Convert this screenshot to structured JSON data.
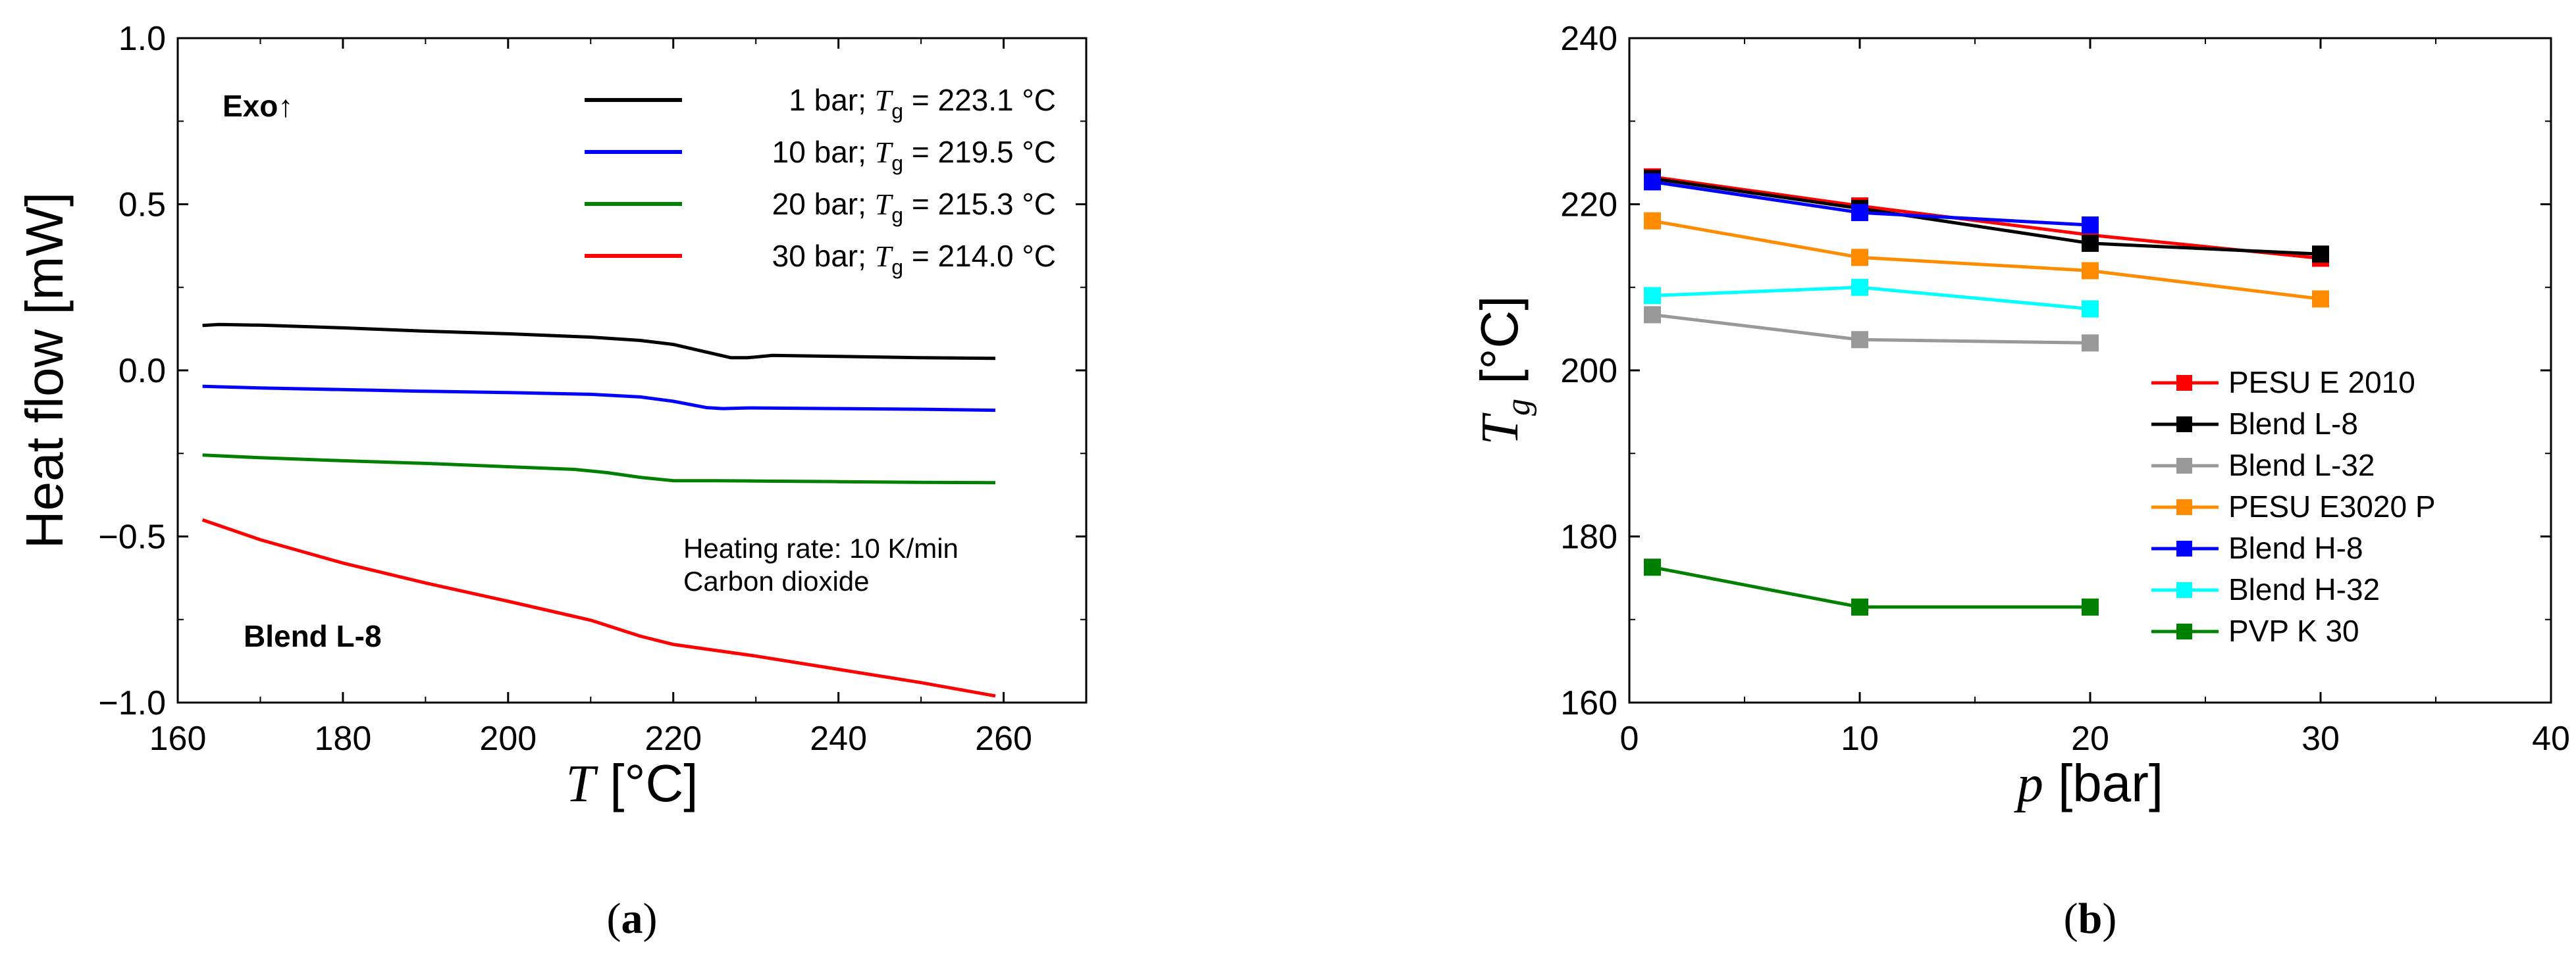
{
  "chart_data": [
    {
      "type": "line",
      "panel_label": "(a)",
      "xlabel": {
        "symbol": "T",
        "unit": "[°C]"
      },
      "ylabel": "Heat flow [mW]",
      "xlim": [
        160,
        270
      ],
      "ylim": [
        -1.0,
        1.0
      ],
      "x_ticks": [
        160,
        180,
        200,
        220,
        240,
        260
      ],
      "y_ticks": [
        -1.0,
        -0.5,
        0.0,
        0.5,
        1.0
      ],
      "x_tick_labels": [
        "160",
        "180",
        "200",
        "220",
        "240",
        "260"
      ],
      "y_tick_labels": [
        "−1.0",
        "−0.5",
        "0.0",
        "0.5",
        "1.0"
      ],
      "annotations": {
        "exo": "Exo↑",
        "heating_rate": "Heating rate: 10 K/min",
        "gas": "Carbon dioxide",
        "sample": "Blend L-8"
      },
      "series": [
        {
          "name": "1 bar",
          "pressure": "1 bar",
          "tg_value": "223.1 °C",
          "color": "#000000",
          "points": [
            [
              163,
              0.135
            ],
            [
              165,
              0.138
            ],
            [
              170,
              0.136
            ],
            [
              180,
              0.128
            ],
            [
              190,
              0.118
            ],
            [
              200,
              0.11
            ],
            [
              210,
              0.1
            ],
            [
              216,
              0.09
            ],
            [
              220,
              0.078
            ],
            [
              224,
              0.055
            ],
            [
              227,
              0.038
            ],
            [
              229,
              0.038
            ],
            [
              232,
              0.045
            ],
            [
              240,
              0.042
            ],
            [
              250,
              0.038
            ],
            [
              259,
              0.036
            ]
          ]
        },
        {
          "name": "10 bar",
          "pressure": "10 bar",
          "tg_value": "219.5 °C",
          "color": "#0000ff",
          "points": [
            [
              163,
              -0.048
            ],
            [
              170,
              -0.053
            ],
            [
              180,
              -0.058
            ],
            [
              190,
              -0.063
            ],
            [
              200,
              -0.067
            ],
            [
              210,
              -0.072
            ],
            [
              216,
              -0.08
            ],
            [
              220,
              -0.093
            ],
            [
              224,
              -0.112
            ],
            [
              226,
              -0.115
            ],
            [
              229,
              -0.113
            ],
            [
              240,
              -0.115
            ],
            [
              250,
              -0.117
            ],
            [
              259,
              -0.12
            ]
          ]
        },
        {
          "name": "20 bar",
          "pressure": "20 bar",
          "tg_value": "215.3 °C",
          "color": "#008000",
          "points": [
            [
              163,
              -0.255
            ],
            [
              170,
              -0.263
            ],
            [
              180,
              -0.272
            ],
            [
              190,
              -0.28
            ],
            [
              200,
              -0.29
            ],
            [
              208,
              -0.298
            ],
            [
              212,
              -0.308
            ],
            [
              216,
              -0.322
            ],
            [
              220,
              -0.332
            ],
            [
              225,
              -0.332
            ],
            [
              230,
              -0.333
            ],
            [
              240,
              -0.335
            ],
            [
              250,
              -0.337
            ],
            [
              259,
              -0.338
            ]
          ]
        },
        {
          "name": "30 bar",
          "pressure": "30 bar",
          "tg_value": "214.0 °C",
          "color": "#ff0000",
          "points": [
            [
              163,
              -0.45
            ],
            [
              170,
              -0.51
            ],
            [
              180,
              -0.58
            ],
            [
              190,
              -0.64
            ],
            [
              200,
              -0.695
            ],
            [
              210,
              -0.752
            ],
            [
              216,
              -0.8
            ],
            [
              220,
              -0.825
            ],
            [
              230,
              -0.86
            ],
            [
              240,
              -0.9
            ],
            [
              250,
              -0.94
            ],
            [
              259,
              -0.98
            ]
          ]
        }
      ]
    },
    {
      "type": "line",
      "panel_label": "(b)",
      "xlabel": {
        "symbol": "p",
        "unit": "[bar]"
      },
      "ylabel": {
        "symbol": "T",
        "subscript": "g",
        "unit": "[°C]"
      },
      "xlim": [
        0,
        40
      ],
      "ylim": [
        160,
        240
      ],
      "x_ticks": [
        0,
        10,
        20,
        30,
        40
      ],
      "y_ticks": [
        160,
        180,
        200,
        220,
        240
      ],
      "x_tick_labels": [
        "0",
        "10",
        "20",
        "30",
        "40"
      ],
      "y_tick_labels": [
        "160",
        "180",
        "200",
        "220",
        "240"
      ],
      "series": [
        {
          "name": "PESU E 2010",
          "color": "#ff0000",
          "x": [
            1,
            10,
            20,
            30
          ],
          "y": [
            223.3,
            219.8,
            216.3,
            213.5
          ]
        },
        {
          "name": "Blend L-8",
          "color": "#000000",
          "x": [
            1,
            10,
            20,
            30
          ],
          "y": [
            223.1,
            219.5,
            215.3,
            214.0
          ]
        },
        {
          "name": "Blend L-32",
          "color": "#999999",
          "x": [
            1,
            10,
            20
          ],
          "y": [
            206.7,
            203.7,
            203.3
          ]
        },
        {
          "name": "PESU E3020 P",
          "color": "#ff8c00",
          "x": [
            1,
            10,
            20,
            30
          ],
          "y": [
            218.0,
            213.6,
            212.0,
            208.6
          ]
        },
        {
          "name": "Blend H-8",
          "color": "#0000ff",
          "x": [
            1,
            10,
            20
          ],
          "y": [
            222.7,
            219.0,
            217.5
          ]
        },
        {
          "name": "Blend H-32",
          "color": "#00ffff",
          "x": [
            1,
            10,
            20
          ],
          "y": [
            209.0,
            210.0,
            207.4
          ]
        },
        {
          "name": "PVP K 30",
          "color": "#008000",
          "x": [
            1,
            10,
            20
          ],
          "y": [
            176.3,
            171.5,
            171.5
          ]
        }
      ]
    }
  ]
}
